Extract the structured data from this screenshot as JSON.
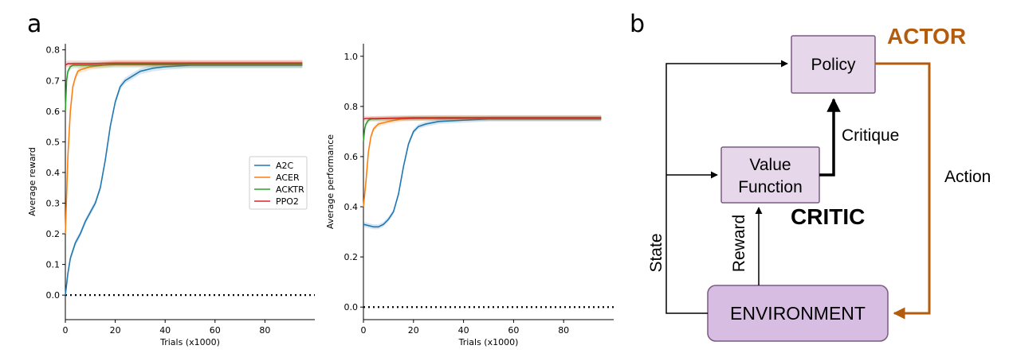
{
  "panel_a_label": "a",
  "panel_b_label": "b",
  "chart_data": [
    {
      "type": "line",
      "xlabel": "Trials (x1000)",
      "ylabel": "Average reward",
      "xlim": [
        0,
        100
      ],
      "ylim": [
        -0.08,
        0.82
      ],
      "xticks": [
        0,
        20,
        40,
        60,
        80
      ],
      "yticks": [
        0.0,
        0.1,
        0.2,
        0.3,
        0.4,
        0.5,
        0.6,
        0.7,
        0.8
      ],
      "ytick_labels": [
        "0.0",
        "0.1",
        "0.2",
        "0.3",
        "0.4",
        "0.5",
        "0.6",
        "0.7",
        "0.8"
      ],
      "chance_level": 0.0,
      "legend_position": "center-right",
      "series": [
        {
          "name": "A2C",
          "color": "#1f77b4",
          "x": [
            0,
            1,
            2,
            4,
            6,
            8,
            10,
            12,
            14,
            16,
            18,
            20,
            22,
            24,
            26,
            30,
            35,
            40,
            50,
            60,
            70,
            80,
            90,
            95
          ],
          "y": [
            0.0,
            0.07,
            0.12,
            0.17,
            0.2,
            0.24,
            0.27,
            0.3,
            0.35,
            0.44,
            0.55,
            0.63,
            0.68,
            0.7,
            0.71,
            0.73,
            0.74,
            0.745,
            0.75,
            0.75,
            0.75,
            0.75,
            0.75,
            0.75
          ]
        },
        {
          "name": "ACER",
          "color": "#ff7f0e",
          "x": [
            0,
            1,
            2,
            3,
            4,
            5,
            6,
            8,
            10,
            15,
            20,
            30,
            40,
            50,
            60,
            70,
            80,
            90,
            95
          ],
          "y": [
            0.2,
            0.45,
            0.6,
            0.68,
            0.71,
            0.73,
            0.735,
            0.74,
            0.745,
            0.75,
            0.755,
            0.755,
            0.755,
            0.755,
            0.755,
            0.755,
            0.755,
            0.755,
            0.755
          ]
        },
        {
          "name": "ACKTR",
          "color": "#2ca02c",
          "x": [
            0,
            0.5,
            1,
            2,
            3,
            5,
            8,
            12,
            20,
            30,
            40,
            50,
            60,
            70,
            80,
            90,
            95
          ],
          "y": [
            0.6,
            0.7,
            0.73,
            0.745,
            0.75,
            0.75,
            0.75,
            0.75,
            0.752,
            0.752,
            0.752,
            0.752,
            0.752,
            0.752,
            0.752,
            0.752,
            0.752
          ]
        },
        {
          "name": "PPO2",
          "color": "#d62728",
          "x": [
            0,
            1,
            2,
            5,
            10,
            20,
            30,
            40,
            50,
            60,
            70,
            80,
            90,
            95
          ],
          "y": [
            0.75,
            0.755,
            0.755,
            0.755,
            0.755,
            0.757,
            0.757,
            0.757,
            0.757,
            0.757,
            0.757,
            0.757,
            0.757,
            0.757
          ]
        }
      ]
    },
    {
      "type": "line",
      "xlabel": "Trials (x1000)",
      "ylabel": "Average performance",
      "xlim": [
        0,
        100
      ],
      "ylim": [
        -0.05,
        1.05
      ],
      "xticks": [
        0,
        20,
        40,
        60,
        80
      ],
      "yticks": [
        0.0,
        0.2,
        0.4,
        0.6,
        0.8,
        1.0
      ],
      "ytick_labels": [
        "0.0",
        "0.2",
        "0.4",
        "0.6",
        "0.8",
        "1.0"
      ],
      "chance_level": 0.0,
      "series": [
        {
          "name": "A2C",
          "color": "#1f77b4",
          "x": [
            0,
            2,
            4,
            6,
            8,
            10,
            12,
            14,
            16,
            18,
            20,
            22,
            25,
            30,
            40,
            50,
            60,
            70,
            80,
            90,
            95
          ],
          "y": [
            0.33,
            0.325,
            0.32,
            0.32,
            0.33,
            0.35,
            0.38,
            0.45,
            0.56,
            0.65,
            0.7,
            0.72,
            0.73,
            0.74,
            0.745,
            0.75,
            0.75,
            0.75,
            0.75,
            0.75,
            0.75
          ]
        },
        {
          "name": "ACER",
          "color": "#ff7f0e",
          "x": [
            0,
            1,
            2,
            3,
            4,
            5,
            6,
            8,
            10,
            15,
            20,
            30,
            40,
            50,
            60,
            70,
            80,
            90,
            95
          ],
          "y": [
            0.4,
            0.5,
            0.62,
            0.68,
            0.71,
            0.72,
            0.73,
            0.735,
            0.74,
            0.75,
            0.752,
            0.755,
            0.755,
            0.755,
            0.755,
            0.755,
            0.755,
            0.755,
            0.755
          ]
        },
        {
          "name": "ACKTR",
          "color": "#2ca02c",
          "x": [
            0,
            0.5,
            1,
            2,
            3,
            5,
            10,
            20,
            30,
            40,
            50,
            60,
            70,
            80,
            90,
            95
          ],
          "y": [
            0.66,
            0.71,
            0.73,
            0.745,
            0.75,
            0.75,
            0.752,
            0.752,
            0.752,
            0.752,
            0.752,
            0.752,
            0.752,
            0.752,
            0.752,
            0.752
          ]
        },
        {
          "name": "PPO2",
          "color": "#d62728",
          "x": [
            0,
            1,
            2,
            5,
            10,
            20,
            30,
            40,
            50,
            60,
            70,
            80,
            90,
            95
          ],
          "y": [
            0.75,
            0.752,
            0.752,
            0.752,
            0.753,
            0.755,
            0.755,
            0.755,
            0.755,
            0.755,
            0.755,
            0.755,
            0.755,
            0.755
          ]
        }
      ]
    }
  ],
  "diagram": {
    "policy": "Policy",
    "value_line1": "Value",
    "value_line2": "Function",
    "environment": "ENVIRONMENT",
    "actor": "ACTOR",
    "critic": "CRITIC",
    "critique": "Critique",
    "action": "Action",
    "state": "State",
    "reward": "Reward",
    "colors": {
      "box_fill_light": "#e6d8ea",
      "box_fill_env": "#d8bde3",
      "box_stroke": "#7a5a84",
      "actor_color": "#b35c0d"
    }
  }
}
